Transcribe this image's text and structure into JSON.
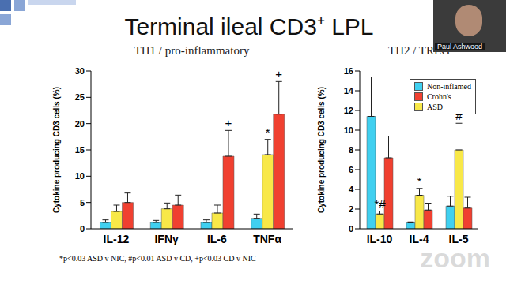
{
  "title": "Terminal ileal CD3⁺ LPL",
  "speaker": "Paul Ashwood",
  "watermark": "zoom",
  "footnote": "*p<0.03 ASD v NIC, #p<0.01 ASD v CD, +p<0.03 CD v NIC",
  "chart_data": [
    {
      "type": "bar",
      "title": "TH1 / pro-inflammatory",
      "y_label": "Cytokine producing CD3 cells (%)",
      "categories": [
        "IL-12",
        "IFNγ",
        "IL-6",
        "TNFα"
      ],
      "ylim": [
        0,
        30
      ],
      "yticks": [
        0,
        5,
        10,
        15,
        20,
        25,
        30
      ],
      "series": [
        {
          "name": "Non-inflamed",
          "color": "#40d0f0",
          "values": [
            1.2,
            1.2,
            1.2,
            2.0
          ],
          "errors": [
            0.5,
            0.4,
            0.5,
            0.8
          ],
          "annotations": [
            null,
            null,
            null,
            null
          ]
        },
        {
          "name": "Crohn's",
          "color": "#f04030",
          "values": [
            5.0,
            4.5,
            13.8,
            21.8
          ],
          "errors": [
            1.8,
            1.9,
            4.9,
            6.2
          ],
          "annotations": [
            null,
            null,
            "+",
            "+"
          ]
        },
        {
          "name": "ASD",
          "color": "#f8e848",
          "values": [
            3.3,
            3.8,
            3.0,
            14.1
          ],
          "errors": [
            1.2,
            1.1,
            1.5,
            2.9
          ],
          "annotations": [
            null,
            null,
            null,
            "*"
          ]
        }
      ]
    },
    {
      "type": "bar",
      "title": "TH2 / TREG",
      "y_label": "Cytokine producing CD3 cells (%)",
      "categories": [
        "IL-10",
        "IL-4",
        "IL-5"
      ],
      "ylim": [
        0,
        16
      ],
      "yticks": [
        0,
        2,
        4,
        6,
        8,
        10,
        12,
        14,
        16
      ],
      "legend": "upper right",
      "series": [
        {
          "name": "Non-inflamed",
          "color": "#40d0f0",
          "values": [
            11.4,
            0.6,
            2.3
          ],
          "errors": [
            4.0,
            0.1,
            1.0
          ],
          "annotations": [
            null,
            null,
            null
          ]
        },
        {
          "name": "Crohn's",
          "color": "#f04030",
          "values": [
            7.2,
            1.9,
            2.1
          ],
          "errors": [
            2.2,
            0.7,
            1.1
          ],
          "annotations": [
            null,
            null,
            null
          ]
        },
        {
          "name": "ASD",
          "color": "#f8e848",
          "values": [
            1.5,
            3.4,
            8.0
          ],
          "errors": [
            0.3,
            0.7,
            2.7
          ],
          "annotations": [
            "*#",
            "*",
            "#"
          ]
        }
      ]
    }
  ]
}
